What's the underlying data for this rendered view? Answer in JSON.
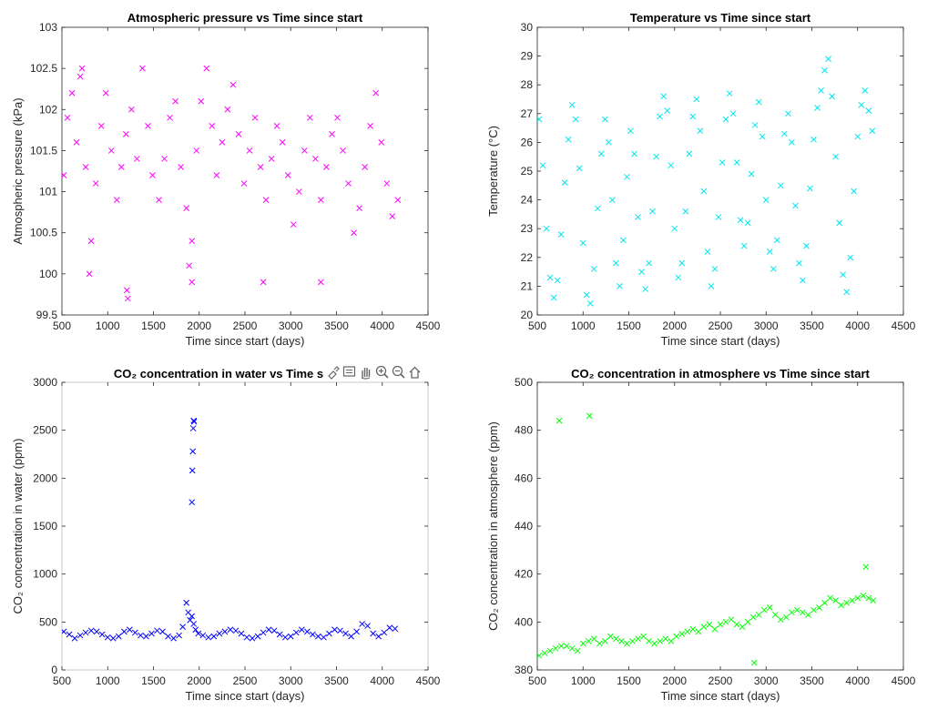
{
  "figure": {
    "toolbar_icons": [
      "brush-icon",
      "data-tips-icon",
      "pan-icon",
      "zoom-in-icon",
      "zoom-out-icon",
      "home-icon"
    ]
  },
  "chart_data": [
    {
      "id": "pressure",
      "type": "scatter",
      "marker": "x",
      "color": "#ff00ff",
      "title": "Atmospheric pressure vs Time since start",
      "xlabel": "Time since start (days)",
      "ylabel": "Atmospheric pressure (kPa)",
      "xlim": [
        500,
        4500
      ],
      "ylim": [
        99.5,
        103
      ],
      "xticks": [
        500,
        1000,
        1500,
        2000,
        2500,
        3000,
        3500,
        4000,
        4500
      ],
      "xtick_labels": [
        "500",
        "1000",
        "1500",
        "2000",
        "2500",
        "3000",
        "3500",
        "4000",
        "4500"
      ],
      "yticks": [
        99.5,
        100,
        100.5,
        101,
        101.5,
        102,
        102.5,
        103
      ],
      "ytick_labels": [
        "99.5",
        "100",
        "100.5",
        "101",
        "101.5",
        "102",
        "102.5",
        "103"
      ],
      "x": [
        520,
        560,
        610,
        660,
        700,
        760,
        820,
        870,
        930,
        980,
        1040,
        1100,
        1150,
        1200,
        1260,
        1320,
        1380,
        1440,
        1490,
        1560,
        1620,
        1680,
        1740,
        1800,
        1860,
        1920,
        1970,
        2020,
        2080,
        2140,
        2190,
        2250,
        2310,
        2370,
        2430,
        2490,
        2550,
        2610,
        2670,
        2730,
        2790,
        2850,
        2910,
        2970,
        3030,
        3090,
        3150,
        3210,
        3270,
        3330,
        3390,
        3450,
        3510,
        3570,
        3630,
        3690,
        3750,
        3810,
        3870,
        3930,
        3990,
        4050,
        4110,
        4170,
        720,
        800,
        1210,
        1220,
        1890,
        1920,
        2700,
        3330
      ],
      "y": [
        101.2,
        101.9,
        102.2,
        101.6,
        102.4,
        101.3,
        100.4,
        101.1,
        101.8,
        102.2,
        101.5,
        100.9,
        101.3,
        101.7,
        102.0,
        101.4,
        102.5,
        101.8,
        101.2,
        100.9,
        101.4,
        101.9,
        102.1,
        101.3,
        100.8,
        100.4,
        101.5,
        102.1,
        102.5,
        101.8,
        101.2,
        101.6,
        102.0,
        102.3,
        101.7,
        101.1,
        101.5,
        101.9,
        101.3,
        100.9,
        101.4,
        101.8,
        101.6,
        101.2,
        100.6,
        101.0,
        101.5,
        101.9,
        101.4,
        100.9,
        101.3,
        101.7,
        101.9,
        101.5,
        101.1,
        100.5,
        100.8,
        101.3,
        101.8,
        102.2,
        101.6,
        101.1,
        100.7,
        100.9,
        102.5,
        100.0,
        99.8,
        99.7,
        100.1,
        99.9,
        99.9,
        99.9
      ]
    },
    {
      "id": "temperature",
      "type": "scatter",
      "marker": "x",
      "color": "#00e5ee",
      "title": "Temperature vs Time since start",
      "xlabel": "Time since start (days)",
      "ylabel": "Temperature (°C)",
      "xlim": [
        500,
        4500
      ],
      "ylim": [
        20,
        30
      ],
      "xticks": [
        500,
        1000,
        1500,
        2000,
        2500,
        3000,
        3500,
        4000,
        4500
      ],
      "xtick_labels": [
        "500",
        "1000",
        "1500",
        "2000",
        "2500",
        "3000",
        "3500",
        "4000",
        "4500"
      ],
      "yticks": [
        20,
        21,
        22,
        23,
        24,
        25,
        26,
        27,
        28,
        29,
        30
      ],
      "ytick_labels": [
        "20",
        "21",
        "22",
        "23",
        "24",
        "25",
        "26",
        "27",
        "28",
        "29",
        "30"
      ],
      "x": [
        520,
        560,
        600,
        640,
        680,
        720,
        760,
        800,
        840,
        880,
        920,
        960,
        1000,
        1040,
        1080,
        1120,
        1160,
        1200,
        1240,
        1280,
        1320,
        1360,
        1400,
        1440,
        1480,
        1520,
        1560,
        1600,
        1640,
        1680,
        1720,
        1760,
        1800,
        1840,
        1880,
        1920,
        1960,
        2000,
        2040,
        2080,
        2120,
        2160,
        2200,
        2240,
        2280,
        2320,
        2360,
        2400,
        2440,
        2480,
        2520,
        2560,
        2600,
        2640,
        2680,
        2720,
        2760,
        2800,
        2840,
        2880,
        2920,
        2960,
        3000,
        3040,
        3080,
        3120,
        3160,
        3200,
        3240,
        3280,
        3320,
        3360,
        3400,
        3440,
        3480,
        3520,
        3560,
        3600,
        3640,
        3680,
        3720,
        3760,
        3800,
        3840,
        3880,
        3920,
        3960,
        4000,
        4040,
        4080,
        4120,
        4160
      ],
      "y": [
        26.8,
        25.2,
        23.0,
        21.3,
        20.6,
        21.2,
        22.8,
        24.6,
        26.1,
        27.3,
        26.8,
        25.1,
        22.5,
        20.7,
        20.4,
        21.6,
        23.7,
        25.6,
        26.8,
        26.0,
        24.0,
        21.8,
        21.0,
        22.6,
        24.8,
        26.4,
        25.6,
        23.4,
        21.5,
        20.9,
        21.8,
        23.6,
        25.5,
        26.9,
        27.6,
        27.1,
        25.2,
        23.0,
        21.3,
        21.8,
        23.6,
        25.6,
        26.9,
        27.5,
        26.4,
        24.3,
        22.2,
        21.0,
        21.6,
        23.4,
        25.3,
        26.8,
        27.7,
        27.0,
        25.3,
        23.3,
        22.4,
        23.2,
        24.9,
        26.6,
        27.4,
        26.2,
        24.0,
        22.2,
        21.6,
        22.6,
        24.5,
        26.3,
        27.0,
        26.0,
        23.8,
        21.8,
        21.2,
        22.4,
        24.4,
        26.1,
        27.2,
        27.8,
        28.5,
        28.9,
        27.6,
        25.5,
        23.2,
        21.4,
        20.8,
        22.0,
        24.3,
        26.2,
        27.3,
        27.8,
        27.1,
        26.4
      ]
    },
    {
      "id": "co2-water",
      "type": "scatter",
      "marker": "x",
      "color": "#0000ff",
      "title": "CO₂ concentration in water vs Time s",
      "xlabel": "Time since start (days)",
      "ylabel": "CO₂ concentration in water (ppm)",
      "xlim": [
        500,
        4500
      ],
      "ylim": [
        0,
        3000
      ],
      "xticks": [
        500,
        1000,
        1500,
        2000,
        2500,
        3000,
        3500,
        4000,
        4500
      ],
      "xtick_labels": [
        "500",
        "1000",
        "1500",
        "2000",
        "2500",
        "3000",
        "3500",
        "4000",
        "4500"
      ],
      "yticks": [
        0,
        500,
        1000,
        1500,
        2000,
        2500,
        3000
      ],
      "ytick_labels": [
        "0",
        "500",
        "1000",
        "1500",
        "2000",
        "2500",
        "3000"
      ],
      "x": [
        520,
        580,
        640,
        700,
        760,
        820,
        880,
        940,
        1000,
        1060,
        1120,
        1180,
        1240,
        1300,
        1360,
        1420,
        1480,
        1540,
        1600,
        1660,
        1720,
        1780,
        1820,
        1860,
        1880,
        1900,
        1920,
        1940,
        1960,
        1990,
        2040,
        2100,
        2160,
        2220,
        2280,
        2340,
        2400,
        2460,
        2520,
        2580,
        2640,
        2700,
        2760,
        2820,
        2880,
        2940,
        3000,
        3060,
        3120,
        3180,
        3240,
        3300,
        3360,
        3420,
        3480,
        3540,
        3600,
        3660,
        3720,
        3780,
        3840,
        3900,
        3960,
        4020,
        4080,
        4140,
        1920,
        1925,
        1930,
        1935,
        1940,
        1945
      ],
      "y": [
        400,
        370,
        330,
        360,
        390,
        410,
        400,
        370,
        340,
        330,
        350,
        400,
        420,
        390,
        360,
        350,
        380,
        410,
        400,
        350,
        330,
        360,
        450,
        700,
        600,
        520,
        560,
        480,
        420,
        380,
        360,
        340,
        350,
        380,
        400,
        420,
        410,
        380,
        340,
        330,
        350,
        390,
        420,
        410,
        370,
        340,
        350,
        390,
        420,
        400,
        370,
        350,
        340,
        380,
        420,
        410,
        380,
        350,
        400,
        480,
        460,
        380,
        350,
        390,
        440,
        430,
        1750,
        2080,
        2280,
        2520,
        2600,
        2590
      ]
    },
    {
      "id": "co2-atmosphere",
      "type": "scatter",
      "marker": "x",
      "color": "#00ff00",
      "title": "CO₂ concentration in atmosphere vs Time since start",
      "xlabel": "Time since start (days)",
      "ylabel": "CO₂ concentration in atmosphere (ppm)",
      "xlim": [
        500,
        4500
      ],
      "ylim": [
        380,
        500
      ],
      "xticks": [
        500,
        1000,
        1500,
        2000,
        2500,
        3000,
        3500,
        4000,
        4500
      ],
      "xtick_labels": [
        "500",
        "1000",
        "1500",
        "2000",
        "2500",
        "3000",
        "3500",
        "4000",
        "4500"
      ],
      "yticks": [
        380,
        400,
        420,
        440,
        460,
        480,
        500
      ],
      "ytick_labels": [
        "380",
        "400",
        "420",
        "440",
        "460",
        "480",
        "500"
      ],
      "x": [
        520,
        580,
        640,
        700,
        760,
        820,
        880,
        940,
        1000,
        1060,
        1120,
        1180,
        1240,
        1300,
        1360,
        1420,
        1480,
        1540,
        1600,
        1660,
        1720,
        1780,
        1840,
        1900,
        1960,
        2020,
        2080,
        2140,
        2200,
        2260,
        2320,
        2380,
        2440,
        2500,
        2560,
        2620,
        2680,
        2740,
        2800,
        2860,
        2920,
        2980,
        3040,
        3100,
        3160,
        3220,
        3280,
        3340,
        3400,
        3460,
        3520,
        3580,
        3640,
        3700,
        3760,
        3820,
        3880,
        3940,
        4000,
        4060,
        4120,
        4170,
        740,
        1070,
        2870,
        4090
      ],
      "y": [
        386,
        387,
        388,
        389,
        390,
        390,
        389,
        388,
        391,
        392,
        393,
        391,
        392,
        394,
        393,
        392,
        391,
        392,
        393,
        394,
        392,
        391,
        392,
        393,
        392,
        394,
        395,
        396,
        397,
        396,
        398,
        399,
        397,
        399,
        400,
        401,
        399,
        398,
        400,
        402,
        403,
        405,
        406,
        403,
        401,
        402,
        404,
        405,
        404,
        403,
        405,
        406,
        408,
        410,
        409,
        407,
        408,
        409,
        410,
        411,
        410,
        409,
        484,
        486,
        383,
        423
      ]
    }
  ]
}
